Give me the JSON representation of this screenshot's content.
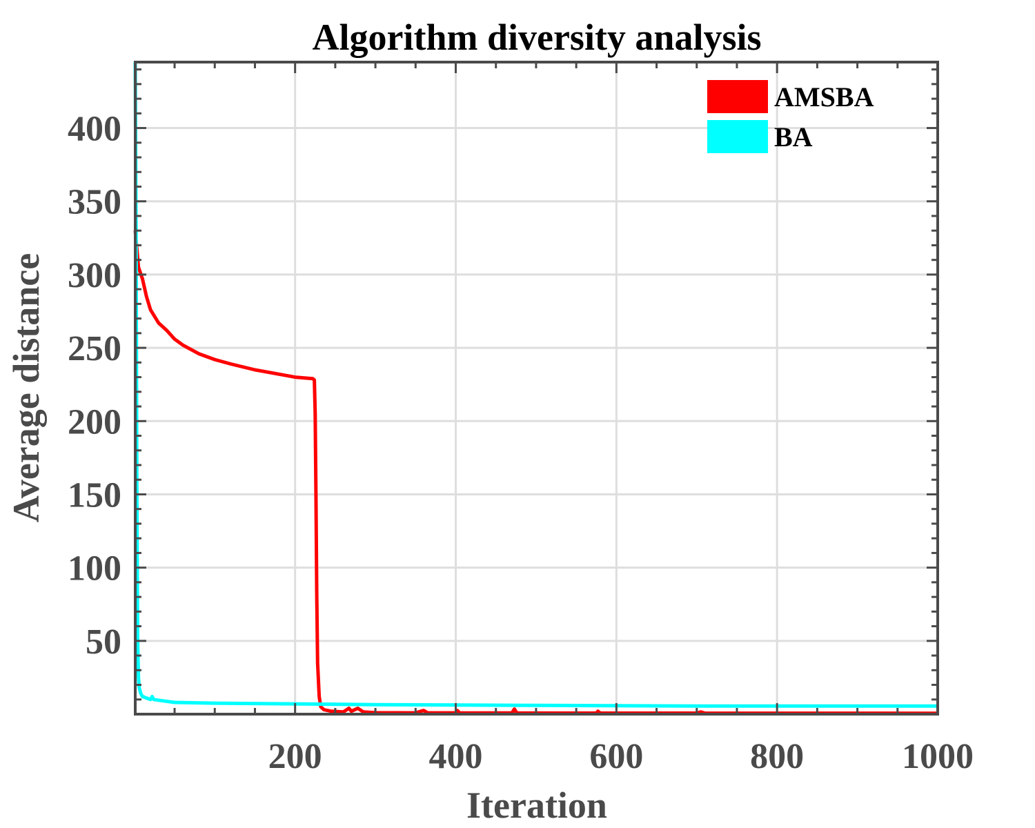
{
  "chart_data": {
    "type": "line",
    "title": "Algorithm diversity analysis",
    "xlabel": "Iteration",
    "ylabel": "Average distance",
    "xlim": [
      1,
      1000
    ],
    "ylim": [
      0,
      445
    ],
    "xticks": [
      200,
      400,
      600,
      800,
      1000
    ],
    "yticks": [
      50,
      100,
      150,
      200,
      250,
      300,
      350,
      400
    ],
    "grid": true,
    "legend_position": "top-right",
    "series": [
      {
        "name": "AMSBA",
        "color": "#ff0000",
        "points": [
          [
            1,
            330
          ],
          [
            3,
            318
          ],
          [
            5,
            305
          ],
          [
            10,
            297
          ],
          [
            15,
            285
          ],
          [
            20,
            276
          ],
          [
            30,
            267
          ],
          [
            40,
            262
          ],
          [
            50,
            256
          ],
          [
            60,
            252
          ],
          [
            80,
            246
          ],
          [
            100,
            242
          ],
          [
            120,
            239
          ],
          [
            150,
            235
          ],
          [
            180,
            232
          ],
          [
            200,
            230
          ],
          [
            222,
            229
          ],
          [
            224,
            228
          ],
          [
            225,
            205
          ],
          [
            226,
            150
          ],
          [
            227,
            80
          ],
          [
            228,
            35
          ],
          [
            230,
            12
          ],
          [
            232,
            5
          ],
          [
            236,
            3
          ],
          [
            245,
            2
          ],
          [
            260,
            1.5
          ],
          [
            267,
            4
          ],
          [
            270,
            2
          ],
          [
            278,
            4
          ],
          [
            285,
            1.5
          ],
          [
            300,
            1
          ],
          [
            350,
            0.9
          ],
          [
            360,
            2.5
          ],
          [
            365,
            0.9
          ],
          [
            400,
            0.9
          ],
          [
            402,
            2.5
          ],
          [
            405,
            0.8
          ],
          [
            470,
            0.8
          ],
          [
            473,
            3.5
          ],
          [
            476,
            0.8
          ],
          [
            575,
            0.7
          ],
          [
            577,
            2
          ],
          [
            580,
            0.7
          ],
          [
            700,
            0.7
          ],
          [
            705,
            1.5
          ],
          [
            710,
            0.7
          ],
          [
            1000,
            0.6
          ]
        ]
      },
      {
        "name": "BA",
        "color": "#00ffff",
        "points": [
          [
            1,
            445
          ],
          [
            2,
            330
          ],
          [
            3,
            160
          ],
          [
            4,
            50
          ],
          [
            5,
            25
          ],
          [
            6,
            18
          ],
          [
            8,
            14
          ],
          [
            10,
            12
          ],
          [
            15,
            11
          ],
          [
            20,
            10
          ],
          [
            22,
            12
          ],
          [
            24,
            10
          ],
          [
            30,
            9.5
          ],
          [
            50,
            8
          ],
          [
            100,
            7.5
          ],
          [
            200,
            7
          ],
          [
            300,
            6.5
          ],
          [
            500,
            6
          ],
          [
            700,
            5.5
          ],
          [
            1000,
            5.5
          ]
        ]
      }
    ]
  }
}
